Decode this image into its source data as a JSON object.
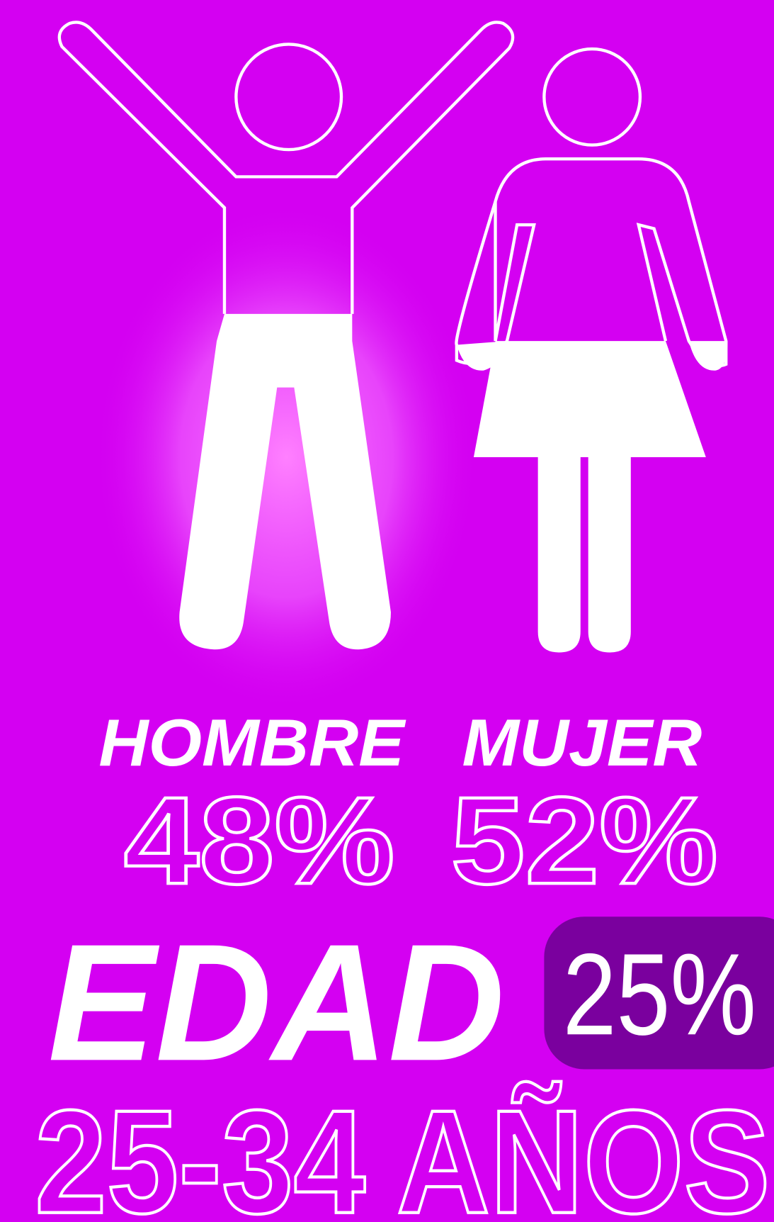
{
  "gender": {
    "items": [
      {
        "label": "HOMBRE",
        "share": "48%"
      },
      {
        "label": "MUJER",
        "share": "52%"
      }
    ]
  },
  "age": {
    "title": "EDAD",
    "share": "25%",
    "range": "25-34 AÑOS"
  }
}
